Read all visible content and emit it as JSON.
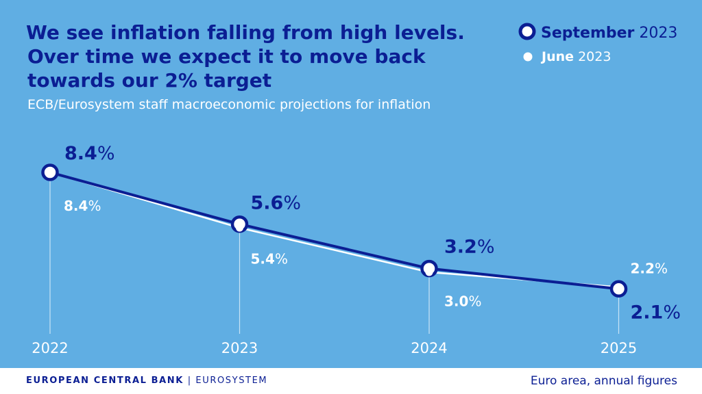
{
  "header": {
    "title_line1": "We see inflation falling from high levels.",
    "title_line2": "Over time we expect it to move back",
    "title_line3": "towards our 2% target",
    "subtitle": "ECB/Eurosystem staff macroeconomic projections for inflation"
  },
  "legend": {
    "september": {
      "month": "September",
      "year": "2023"
    },
    "june": {
      "month": "June",
      "year": "2023"
    }
  },
  "footer": {
    "bank_name": "EUROPEAN CENTRAL BANK",
    "separator": "|",
    "system": "EUROSYSTEM",
    "note": "Euro area, annual figures"
  },
  "colors": {
    "background": "#60aee3",
    "september_series": "#0b1e93",
    "june_series": "#ffffff",
    "footer_text": "#0b1e93"
  },
  "chart_data": {
    "type": "line",
    "x": [
      "2022",
      "2023",
      "2024",
      "2025"
    ],
    "unit": "%",
    "ylim": [
      2,
      8.4
    ],
    "grid": false,
    "legend_position": "top-right",
    "series": [
      {
        "name": "September 2023",
        "values": [
          8.4,
          5.6,
          3.2,
          2.1
        ]
      },
      {
        "name": "June 2023",
        "values": [
          8.4,
          5.4,
          3.0,
          2.2
        ]
      }
    ]
  }
}
